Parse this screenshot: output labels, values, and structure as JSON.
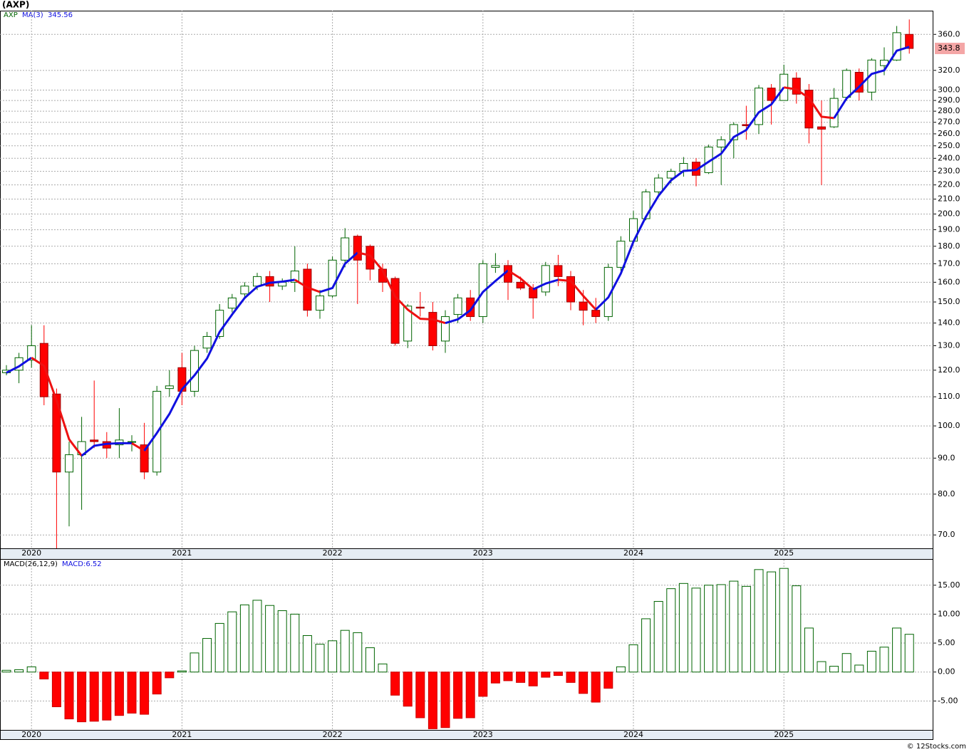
{
  "chart_data": {
    "type": "candlestick",
    "title": "(AXP)",
    "symbol": "AXP",
    "ma_name": "MA(3)",
    "last_price_color": "#f4a6a6",
    "categories": [
      null,
      null,
      "2020",
      null,
      null,
      null,
      null,
      null,
      null,
      null,
      null,
      null,
      null,
      null,
      "2021",
      null,
      null,
      null,
      null,
      null,
      null,
      null,
      null,
      null,
      null,
      null,
      "2022",
      null,
      null,
      null,
      null,
      null,
      null,
      null,
      null,
      null,
      null,
      null,
      "2023",
      null,
      null,
      null,
      null,
      null,
      null,
      null,
      null,
      null,
      null,
      null,
      "2024",
      null,
      null,
      null,
      null,
      null,
      null,
      null,
      null,
      null,
      null,
      null,
      "2025",
      null,
      null,
      null,
      null,
      null,
      null,
      null,
      null,
      null,
      null
    ],
    "open": [
      119,
      120,
      124,
      131,
      111,
      86,
      91,
      95.5,
      95,
      94,
      95,
      94,
      86,
      113,
      121,
      112,
      129,
      134,
      147,
      154,
      158,
      163,
      158,
      160,
      167,
      146,
      153,
      172,
      186,
      180,
      167,
      162,
      132,
      147.5,
      145,
      132,
      144,
      152,
      143,
      168,
      169,
      160,
      157,
      155,
      169,
      163,
      150,
      146,
      143,
      168,
      183,
      197,
      215,
      225,
      230,
      237,
      229,
      249,
      255,
      268,
      268,
      302,
      290,
      312,
      300,
      266,
      266,
      293,
      318,
      298,
      325,
      331,
      360
    ],
    "high": [
      122,
      127,
      139,
      139,
      113,
      95,
      103,
      116,
      98,
      106,
      97,
      101,
      114,
      120,
      127,
      130,
      136,
      149,
      154,
      160,
      165,
      166,
      162,
      180,
      170,
      156,
      174,
      191,
      187,
      181,
      170,
      163,
      149,
      155,
      150,
      146,
      154,
      156,
      172,
      176,
      172,
      163,
      159,
      171,
      175,
      166,
      156,
      152,
      170,
      186,
      202,
      217,
      228,
      232,
      241,
      240,
      251,
      258,
      270,
      285,
      305,
      306,
      326,
      318,
      306,
      290,
      302,
      322,
      322,
      333,
      345,
      370,
      378
    ],
    "low": [
      118,
      115,
      121,
      107,
      67,
      72,
      76,
      93,
      90,
      90,
      92,
      84,
      85,
      110,
      107,
      110,
      127,
      133,
      145,
      152,
      156,
      150,
      156,
      155,
      143,
      142,
      152,
      168,
      149,
      161,
      155,
      130,
      129,
      143,
      128,
      127,
      140,
      141,
      140,
      165,
      151,
      156,
      142,
      153,
      158,
      146,
      139,
      140,
      141,
      166,
      182,
      196,
      213,
      221,
      226,
      219,
      228,
      220,
      240,
      255,
      260,
      268,
      290,
      287,
      252,
      220,
      265,
      290,
      290,
      290,
      315,
      330,
      338
    ],
    "close": [
      120,
      125,
      130,
      110,
      86,
      91,
      95,
      95,
      93,
      95.5,
      95,
      86,
      112,
      114,
      112,
      128,
      134,
      146,
      152,
      158,
      163,
      158,
      160,
      166,
      146,
      153,
      172,
      185,
      172,
      167,
      160,
      131,
      148,
      147,
      130,
      143,
      152,
      143,
      170,
      169,
      160,
      157,
      152,
      169,
      163,
      150,
      146,
      143,
      168,
      183,
      197,
      215,
      225,
      230,
      236,
      227,
      249,
      255,
      268,
      267,
      302,
      290,
      316,
      296,
      265,
      264,
      292,
      320,
      298,
      331,
      330.88,
      362,
      343.8
    ],
    "ma": [
      119,
      121.5,
      125,
      121.7,
      108.7,
      95.7,
      90.7,
      93.7,
      94.3,
      94.5,
      94.5,
      92.2,
      97.7,
      104,
      112.7,
      118,
      124.7,
      136,
      144,
      152,
      157.7,
      159.7,
      160.3,
      161.3,
      157.3,
      155,
      157,
      170,
      176.3,
      174.7,
      166.3,
      152.7,
      146.3,
      142,
      141.7,
      140,
      141.7,
      146,
      155,
      160.7,
      166.3,
      162,
      156.3,
      159.3,
      161.3,
      160.7,
      153,
      146.3,
      152.3,
      164.7,
      182.7,
      198.3,
      212.3,
      223.3,
      230.3,
      231,
      237.3,
      243.7,
      257.3,
      263.3,
      279,
      286.3,
      302.7,
      300.7,
      292.3,
      275,
      273.7,
      292,
      303.3,
      316.3,
      320,
      341.3,
      345.56
    ],
    "up_color": "#006400",
    "down_color": "#ff0000",
    "ma_up_color": "#1010e0",
    "ma_down_color": "#ee1111",
    "ylog": true,
    "ylim": [
      67,
      389
    ],
    "yticks": [
      {
        "value": 70,
        "label": "70.0"
      },
      {
        "value": 80,
        "label": "80.0"
      },
      {
        "value": 90,
        "label": "90.0"
      },
      {
        "value": 100,
        "label": "100.0"
      },
      {
        "value": 110,
        "label": "110.0"
      },
      {
        "value": 120,
        "label": "120.0"
      },
      {
        "value": 130,
        "label": "130.0"
      },
      {
        "value": 140,
        "label": "140.0"
      },
      {
        "value": 150,
        "label": "150.0"
      },
      {
        "value": 160,
        "label": "160.0"
      },
      {
        "value": 170,
        "label": "170.0"
      },
      {
        "value": 180,
        "label": "180.0"
      },
      {
        "value": 190,
        "label": "190.0"
      },
      {
        "value": 200,
        "label": "200.0"
      },
      {
        "value": 210,
        "label": "210.0"
      },
      {
        "value": 220,
        "label": "220.0"
      },
      {
        "value": 230,
        "label": "230.0"
      },
      {
        "value": 240,
        "label": "240.0"
      },
      {
        "value": 250,
        "label": "250.0"
      },
      {
        "value": 260,
        "label": "260.0"
      },
      {
        "value": 270,
        "label": "270.0"
      },
      {
        "value": 280,
        "label": "280.0"
      },
      {
        "value": 290,
        "label": "290.0"
      },
      {
        "value": 300,
        "label": "300.0"
      },
      {
        "value": 320,
        "label": "320.0"
      },
      {
        "value": 360,
        "label": "360.0"
      }
    ],
    "grid": true,
    "macd": {
      "name": "MACD(26,12,9)",
      "label": "MACD:6.52",
      "values": [
        0.3,
        0.4,
        0.9,
        -1.2,
        -6.0,
        -8.1,
        -8.6,
        -8.5,
        -8.3,
        -7.5,
        -7.1,
        -7.3,
        -3.8,
        -1.0,
        0.2,
        3.3,
        5.8,
        8.4,
        10.4,
        11.6,
        12.4,
        11.5,
        10.6,
        10.0,
        6.3,
        4.8,
        5.4,
        7.2,
        6.8,
        4.2,
        1.4,
        -4.0,
        -5.9,
        -7.9,
        -9.8,
        -9.6,
        -8.0,
        -7.9,
        -4.2,
        -1.9,
        -1.5,
        -1.8,
        -2.4,
        -0.9,
        -0.6,
        -1.8,
        -3.7,
        -5.2,
        -2.8,
        0.9,
        4.7,
        9.2,
        12.2,
        14.4,
        15.3,
        14.5,
        15.0,
        15.1,
        15.7,
        14.8,
        17.7,
        17.3,
        17.9,
        14.9,
        7.6,
        1.8,
        1.0,
        3.2,
        1.2,
        3.6,
        4.3,
        7.6,
        6.52
      ],
      "ylim": [
        -10,
        19.4
      ],
      "yticks": [
        {
          "value": 15,
          "label": "15.00"
        },
        {
          "value": 10,
          "label": "10.00"
        },
        {
          "value": 5,
          "label": "5.00"
        },
        {
          "value": 0,
          "label": "0.00"
        },
        {
          "value": -5,
          "label": "-5.00"
        }
      ]
    },
    "copyright": "© 12Stocks.com"
  }
}
